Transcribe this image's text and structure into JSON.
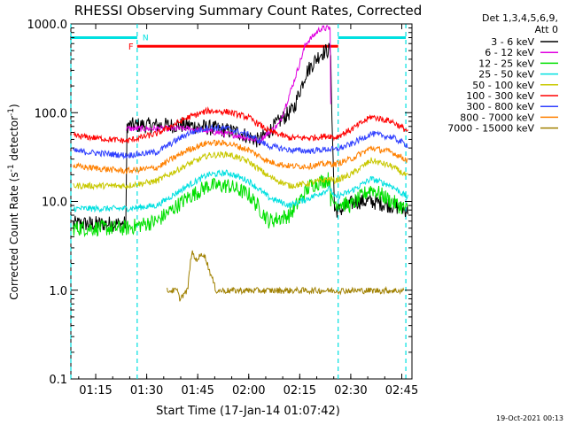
{
  "chart_data": {
    "type": "line",
    "title": "RHESSI Observing Summary Count Rates, Corrected",
    "xlabel": "Start Time (17-Jan-14 01:07:42)",
    "ylabel": "Corrected Count Rate (s⁻¹ detector⁻¹)",
    "ylabel_parts": {
      "main": "Corrected Count Rate (s",
      "sup1": "-1",
      "mid": " detector",
      "sup2": "-1",
      "end": ")"
    },
    "yscale": "log",
    "xlim": [
      1.1283,
      2.8
    ],
    "ylim": [
      0.1,
      1000
    ],
    "x_ticks": [
      {
        "x": 1.25,
        "label": "01:15"
      },
      {
        "x": 1.5,
        "label": "01:30"
      },
      {
        "x": 1.75,
        "label": "01:45"
      },
      {
        "x": 2.0,
        "label": "02:00"
      },
      {
        "x": 2.25,
        "label": "02:15"
      },
      {
        "x": 2.5,
        "label": "02:30"
      },
      {
        "x": 2.75,
        "label": "02:45"
      }
    ],
    "y_ticks": [
      {
        "y": 0.1,
        "label": "0.1"
      },
      {
        "y": 1,
        "label": "1.0"
      },
      {
        "y": 10,
        "label": "10.0"
      },
      {
        "y": 100,
        "label": "100.0"
      },
      {
        "y": 1000,
        "label": "1000.0"
      }
    ],
    "legend_position": "right",
    "legend_header": [
      "Det 1,3,4,5,6,9,",
      "Att 0"
    ],
    "series": [
      {
        "name": "3 - 6 keV",
        "color": "#000000",
        "x": [
          1.14,
          1.4,
          1.401,
          1.7,
          1.8,
          1.95,
          2.05,
          2.15,
          2.22,
          2.28,
          2.35,
          2.4,
          2.42,
          2.45,
          2.52,
          2.6,
          2.7,
          2.78
        ],
        "y": [
          5.6,
          5.6,
          72,
          72,
          68,
          60,
          48,
          80,
          110,
          280,
          460,
          520,
          8,
          8,
          10,
          10,
          9,
          8
        ]
      },
      {
        "name": "6 - 12 keV",
        "color": "#e000e0",
        "x": [
          1.4,
          1.7,
          1.8,
          1.95,
          2.05,
          2.15,
          2.22,
          2.28,
          2.35,
          2.4,
          2.402
        ],
        "y": [
          66,
          66,
          62,
          55,
          48,
          75,
          220,
          600,
          880,
          900,
          120
        ]
      },
      {
        "name": "12 - 25 keV",
        "color": "#00e000",
        "x": [
          1.14,
          1.4,
          1.55,
          1.7,
          1.8,
          1.9,
          2.0,
          2.1,
          2.2,
          2.3,
          2.36,
          2.4,
          2.402,
          2.5,
          2.6,
          2.7,
          2.78
        ],
        "y": [
          5.0,
          5.0,
          6,
          11,
          15,
          15,
          12,
          6,
          7,
          15,
          17,
          18,
          10,
          9,
          14,
          10,
          8
        ]
      },
      {
        "name": "25 - 50 keV",
        "color": "#00e0e0",
        "x": [
          1.14,
          1.4,
          1.55,
          1.7,
          1.8,
          1.9,
          2.0,
          2.1,
          2.2,
          2.3,
          2.4,
          2.42,
          2.5,
          2.6,
          2.7,
          2.78
        ],
        "y": [
          8.3,
          8.3,
          9,
          15,
          20,
          21,
          17,
          11,
          9,
          11,
          14,
          11,
          13,
          18,
          15,
          11
        ]
      },
      {
        "name": "50 - 100 keV",
        "color": "#c8c800",
        "x": [
          1.14,
          1.4,
          1.55,
          1.7,
          1.8,
          1.9,
          2.0,
          2.1,
          2.2,
          2.3,
          2.4,
          2.42,
          2.5,
          2.6,
          2.7,
          2.78
        ],
        "y": [
          15,
          15,
          17,
          26,
          33,
          34,
          28,
          19,
          15,
          16,
          18,
          17,
          20,
          29,
          25,
          19
        ]
      },
      {
        "name": "100 - 300 keV",
        "color": "#ff0000",
        "x": [
          1.14,
          1.4,
          1.55,
          1.7,
          1.8,
          1.9,
          2.0,
          2.1,
          2.2,
          2.3,
          2.4,
          2.42,
          2.5,
          2.6,
          2.7,
          2.78
        ],
        "y": [
          55,
          48,
          58,
          88,
          105,
          102,
          88,
          62,
          52,
          52,
          55,
          52,
          64,
          90,
          80,
          62
        ]
      },
      {
        "name": "300 - 800 keV",
        "color": "#3040ff",
        "x": [
          1.14,
          1.4,
          1.55,
          1.7,
          1.8,
          1.9,
          2.0,
          2.1,
          2.2,
          2.3,
          2.4,
          2.42,
          2.5,
          2.6,
          2.7,
          2.78
        ],
        "y": [
          37,
          33,
          36,
          58,
          68,
          66,
          56,
          42,
          38,
          37,
          39,
          38,
          44,
          58,
          53,
          43
        ]
      },
      {
        "name": "800 - 7000 keV",
        "color": "#ff8000",
        "x": [
          1.14,
          1.4,
          1.55,
          1.7,
          1.8,
          1.9,
          2.0,
          2.1,
          2.2,
          2.3,
          2.4,
          2.42,
          2.5,
          2.6,
          2.7,
          2.78
        ],
        "y": [
          25,
          22,
          24,
          38,
          46,
          45,
          38,
          28,
          25,
          25,
          27,
          26,
          30,
          40,
          36,
          29
        ]
      },
      {
        "name": "7000 - 15000 keV",
        "color": "#a08000",
        "x": [
          1.6,
          1.65,
          1.66,
          1.7,
          1.72,
          1.74,
          1.78,
          1.84,
          1.9,
          2.0,
          2.08,
          2.16,
          2.24,
          2.3,
          2.5,
          2.7,
          2.76
        ],
        "y": [
          0.99,
          0.99,
          0.8,
          0.99,
          2.7,
          2.2,
          2.6,
          0.99,
          0.99,
          0.99,
          0.99,
          0.99,
          0.99,
          0.99,
          0.99,
          0.99,
          0.99
        ]
      }
    ],
    "time_markers": {
      "night_start": 1.1283,
      "night_end": 1.4533,
      "night2_start": 2.4383,
      "night2_end": 2.77,
      "saa_start": 1.4533,
      "flare_end": 2.4383,
      "night_color": "#00e0e0",
      "flare_color": "#ff0000",
      "saa_label": "N",
      "flare_label": "F",
      "night_bar_y": 700,
      "flare_bar_y": 560
    }
  },
  "footer": {
    "timestamp": "19-Oct-2021 00:13"
  }
}
